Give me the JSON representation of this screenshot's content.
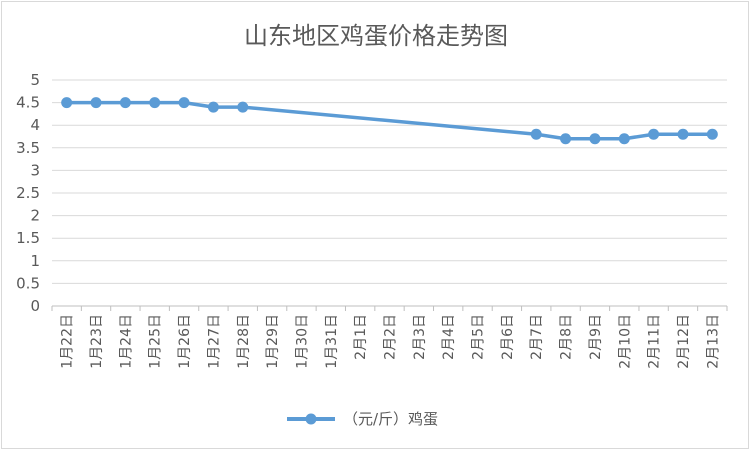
{
  "chart_data": {
    "type": "line",
    "title": "山东地区鸡蛋价格走势图",
    "xlabel": "",
    "ylabel": "",
    "ylim": [
      0,
      5
    ],
    "ytick_labels": [
      "0",
      "0.5",
      "1",
      "1.5",
      "2",
      "2.5",
      "3",
      "3.5",
      "4",
      "4.5",
      "5"
    ],
    "grid": true,
    "legend_position": "bottom",
    "categories": [
      "1月22日",
      "1月23日",
      "1月24日",
      "1月25日",
      "1月26日",
      "1月27日",
      "1月28日",
      "1月29日",
      "1月30日",
      "1月31日",
      "2月1日",
      "2月2日",
      "2月3日",
      "2月4日",
      "2月5日",
      "2月6日",
      "2月7日",
      "2月8日",
      "2月9日",
      "2月10日",
      "2月11日",
      "2月12日",
      "2月13日"
    ],
    "series": [
      {
        "name": "（元/斤）鸡蛋",
        "color": "#5b9bd5",
        "values": [
          4.5,
          4.5,
          4.5,
          4.5,
          4.5,
          4.4,
          4.4,
          null,
          null,
          null,
          null,
          null,
          null,
          null,
          null,
          null,
          3.8,
          3.7,
          3.7,
          3.7,
          3.8,
          3.8,
          3.8
        ]
      }
    ]
  }
}
